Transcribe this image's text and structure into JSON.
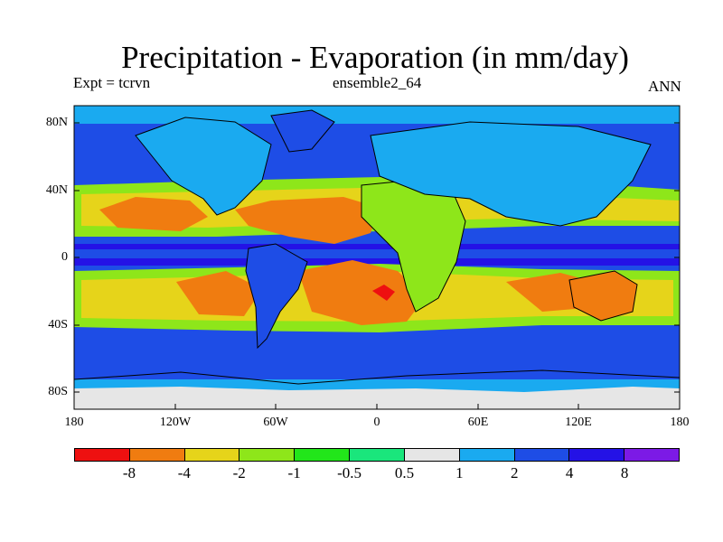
{
  "header": {
    "title": "Precipitation - Evaporation (in mm/day)",
    "left_label": "Expt = tcrvn",
    "center_label": "ensemble2_64",
    "right_label": "ANN"
  },
  "map": {
    "lat_labels": [
      "80N",
      "40N",
      "0",
      "40S",
      "80S"
    ],
    "lon_labels": [
      "180",
      "120W",
      "60W",
      "0",
      "60E",
      "120E",
      "180"
    ],
    "background_color": "#1e4de6"
  },
  "colorbar": {
    "colors": [
      "#ee1010",
      "#f07c10",
      "#e6d41a",
      "#8ee61a",
      "#22e61a",
      "#1ae67c",
      "#e6e6e6",
      "#1aaaf0",
      "#1e4de6",
      "#2412e6",
      "#7c1ae6"
    ],
    "labels": [
      "-8",
      "-4",
      "-2",
      "-1",
      "-0.5",
      "0.5",
      "1",
      "2",
      "4",
      "8"
    ]
  }
}
